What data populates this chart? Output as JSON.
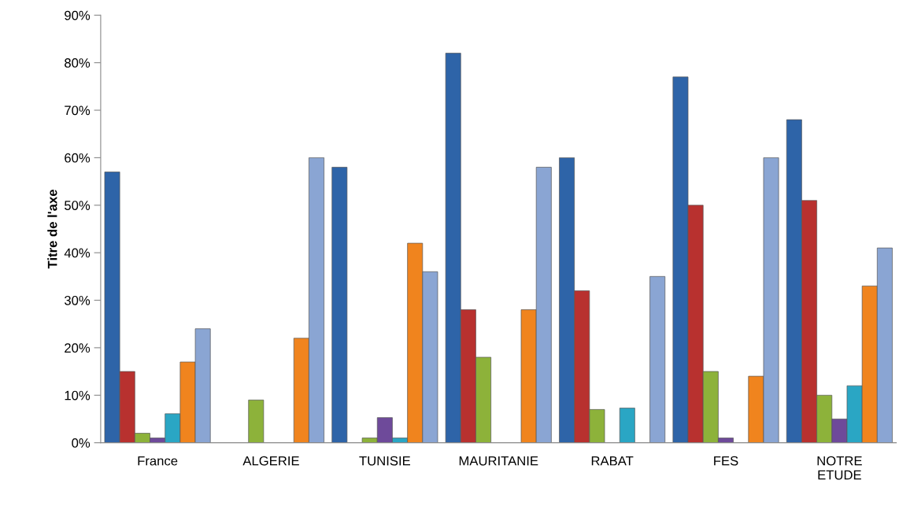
{
  "chart_data": {
    "type": "bar",
    "ylabel": "Titre de l'axe",
    "categories": [
      "France",
      "ALGERIE",
      "TUNISIE",
      "MAURITANIE",
      "RABAT",
      "FES",
      "NOTRE\nETUDE"
    ],
    "series": [
      {
        "color": "#2e64a8",
        "values": [
          57,
          null,
          58,
          82,
          60,
          77,
          68
        ]
      },
      {
        "color": "#b8312f",
        "values": [
          15,
          null,
          null,
          28,
          32,
          50,
          51
        ]
      },
      {
        "color": "#8db23a",
        "values": [
          2,
          9,
          1,
          18,
          7,
          15,
          10
        ]
      },
      {
        "color": "#6e4a9a",
        "values": [
          1,
          null,
          5.3,
          null,
          null,
          1,
          5
        ]
      },
      {
        "color": "#2aa6c4",
        "values": [
          6.1,
          null,
          1,
          null,
          7.3,
          null,
          12
        ]
      },
      {
        "color": "#f0841e",
        "values": [
          17,
          22,
          42,
          28,
          null,
          14,
          33
        ]
      },
      {
        "color": "#8aa5d3",
        "values": [
          24,
          60,
          36,
          58,
          35,
          60,
          41
        ]
      }
    ],
    "ylim": [
      0,
      90
    ],
    "yticks": [
      {
        "value": 0,
        "label": "0%"
      },
      {
        "value": 10,
        "label": "10%"
      },
      {
        "value": 20,
        "label": "20%"
      },
      {
        "value": 30,
        "label": "30%"
      },
      {
        "value": 40,
        "label": "40%"
      },
      {
        "value": 50,
        "label": "50%"
      },
      {
        "value": 60,
        "label": "60%"
      },
      {
        "value": 70,
        "label": "70%"
      },
      {
        "value": 80,
        "label": "80%"
      },
      {
        "value": 90,
        "label": "90%"
      }
    ],
    "grid": false,
    "legend": false
  }
}
